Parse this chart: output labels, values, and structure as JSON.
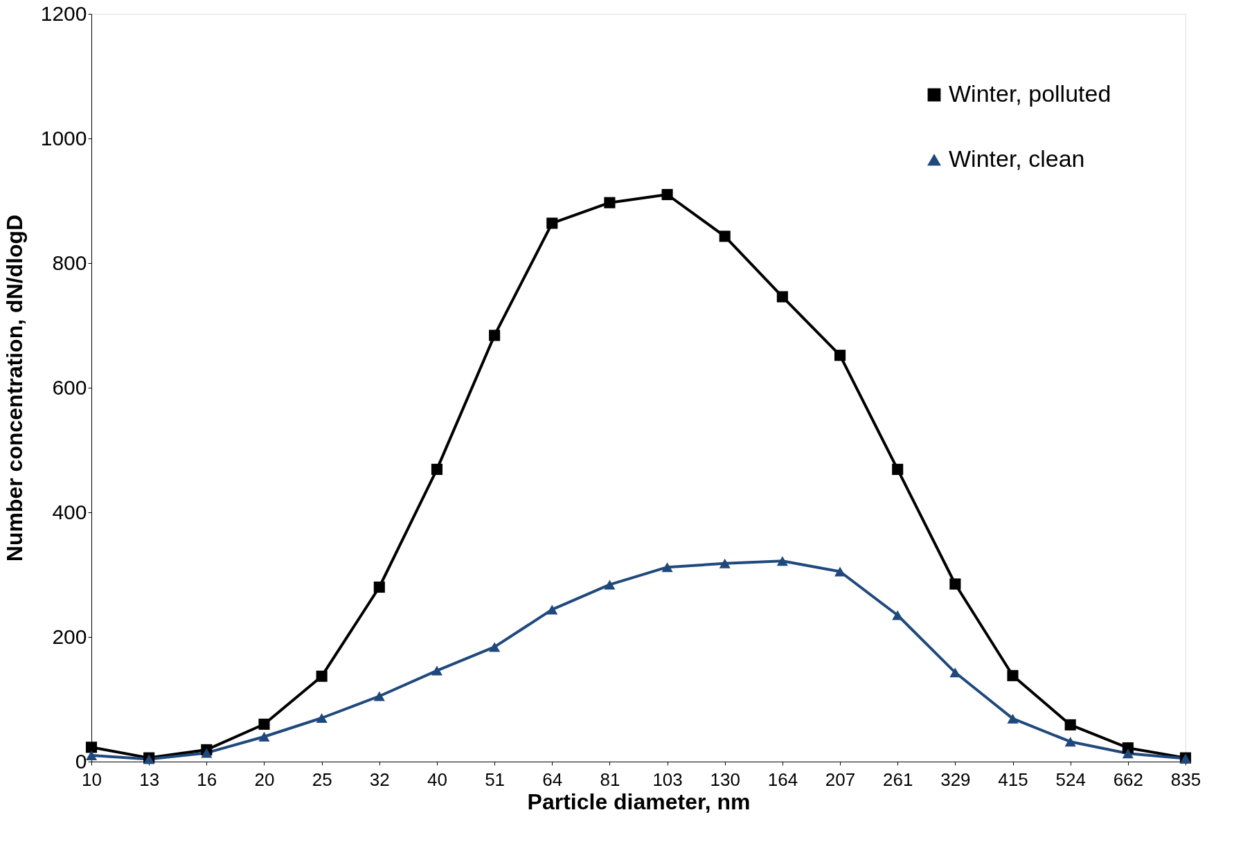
{
  "chart_data": {
    "type": "line",
    "xlabel": "Particle diameter, nm",
    "ylabel": "Number concentration, dN/dlogD",
    "categories": [
      "10",
      "13",
      "16",
      "20",
      "25",
      "32",
      "40",
      "51",
      "64",
      "81",
      "103",
      "130",
      "164",
      "207",
      "261",
      "329",
      "415",
      "524",
      "662",
      "835"
    ],
    "series": [
      {
        "name": "Winter, polluted",
        "color": "#000000",
        "marker": "square",
        "values": [
          23,
          6,
          19,
          60,
          137,
          280,
          469,
          684,
          864,
          897,
          910,
          843,
          746,
          652,
          469,
          285,
          138,
          59,
          22,
          6
        ]
      },
      {
        "name": "Winter, clean",
        "color": "#1f497d",
        "marker": "triangle",
        "values": [
          10,
          4,
          14,
          40,
          70,
          105,
          146,
          184,
          244,
          284,
          312,
          318,
          322,
          305,
          235,
          143,
          69,
          32,
          13,
          5
        ]
      }
    ],
    "ylim": [
      0,
      1200
    ],
    "yticks": [
      0,
      200,
      400,
      600,
      800,
      1000,
      1200
    ],
    "grid": false,
    "legend": "top right",
    "line_style": "solid"
  }
}
